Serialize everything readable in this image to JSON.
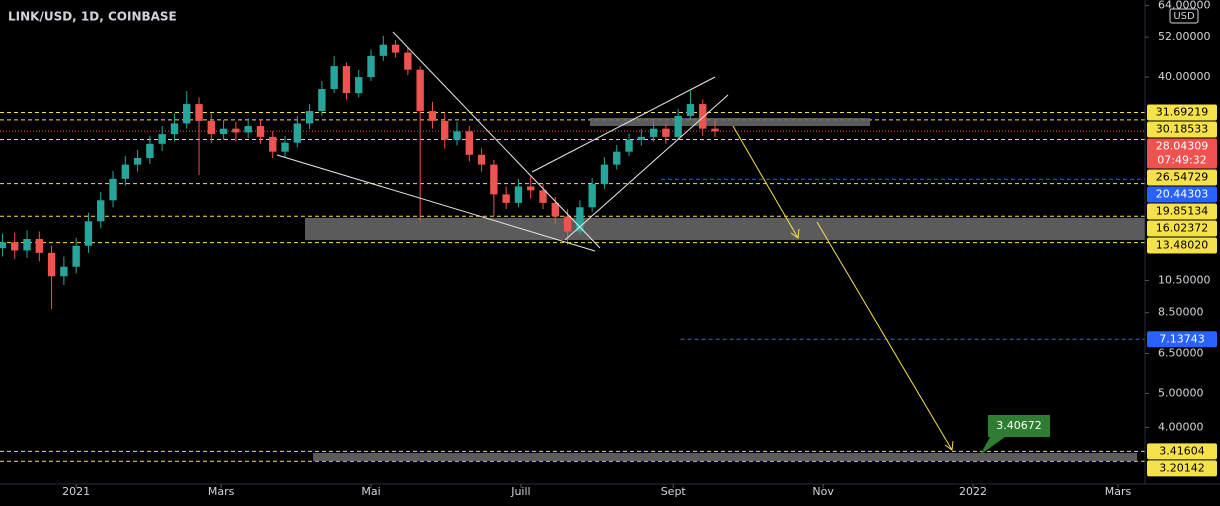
{
  "chart_data": {
    "type": "candlestick",
    "title": "LINK/USD, 1D, COINBASE",
    "currency": "USD",
    "x": [
      -30,
      -25,
      -20,
      -15,
      -10,
      -5,
      0,
      5,
      10,
      15,
      20,
      25,
      30,
      35,
      40,
      45,
      50,
      55,
      60,
      65,
      70,
      75,
      80,
      85,
      90,
      95,
      100,
      105,
      110,
      115,
      120,
      125,
      130,
      135,
      140,
      145,
      150,
      155,
      160,
      165,
      170,
      175,
      180,
      185,
      190,
      195,
      200,
      205,
      210,
      215,
      220,
      225,
      230,
      235,
      240,
      245,
      250,
      255,
      260
    ],
    "open": [
      13.0,
      13.5,
      12.8,
      13.8,
      12.6,
      10.8,
      11.5,
      13.2,
      15.5,
      17.8,
      20.5,
      22.5,
      23.5,
      25.8,
      27.5,
      29.5,
      33.5,
      30.0,
      27.5,
      28.5,
      27.8,
      29.0,
      27.0,
      24.5,
      26.0,
      29.5,
      32.0,
      37.0,
      43.0,
      36.0,
      40.0,
      46.0,
      49.5,
      47.0,
      42.0,
      32.0,
      30.0,
      26.5,
      28.0,
      24.0,
      22.5,
      18.5,
      17.5,
      19.5,
      19.0,
      17.5,
      16.0,
      14.5,
      17.0,
      19.8,
      22.5,
      24.5,
      26.5,
      27.0,
      28.5,
      27.0,
      31.0,
      33.5,
      28.5
    ],
    "high": [
      14.3,
      14.4,
      14.6,
      14.5,
      13.2,
      12.3,
      13.9,
      16.4,
      18.8,
      21.6,
      23.8,
      24.8,
      27.2,
      29.0,
      31.5,
      36.5,
      35.0,
      31.5,
      30.2,
      29.8,
      30.5,
      30.3,
      28.0,
      27.2,
      31.0,
      33.5,
      39.0,
      46.0,
      44.0,
      42.0,
      48.0,
      52.5,
      51.0,
      48.5,
      43.0,
      34.0,
      31.5,
      29.8,
      29.0,
      25.0,
      23.2,
      19.5,
      20.5,
      20.8,
      19.8,
      18.2,
      16.8,
      17.8,
      20.6,
      23.6,
      25.6,
      27.6,
      28.4,
      29.8,
      29.5,
      32.5,
      36.5,
      34.5,
      30.0
    ],
    "low": [
      12.3,
      12.1,
      12.2,
      11.9,
      8.7,
      10.2,
      11.0,
      12.6,
      14.8,
      17.0,
      19.6,
      21.5,
      22.6,
      24.6,
      26.2,
      28.5,
      21.0,
      26.0,
      26.5,
      26.2,
      26.8,
      25.8,
      23.5,
      23.6,
      25.2,
      28.4,
      31.0,
      36.0,
      34.5,
      35.0,
      39.0,
      44.5,
      45.5,
      40.5,
      15.5,
      28.5,
      25.0,
      25.5,
      23.0,
      21.5,
      16.0,
      16.8,
      17.0,
      18.0,
      16.8,
      15.2,
      13.3,
      14.2,
      16.5,
      19.2,
      21.8,
      23.8,
      25.5,
      26.2,
      25.8,
      26.5,
      30.2,
      27.2,
      27.0
    ],
    "close": [
      13.5,
      12.8,
      13.8,
      12.6,
      10.8,
      11.5,
      13.2,
      15.5,
      17.8,
      20.5,
      22.5,
      23.5,
      25.8,
      27.5,
      29.5,
      33.5,
      30.0,
      27.5,
      28.5,
      27.8,
      29.0,
      27.0,
      24.5,
      26.0,
      29.5,
      32.0,
      37.0,
      43.0,
      36.0,
      40.0,
      46.0,
      49.5,
      47.0,
      42.0,
      32.0,
      30.0,
      26.5,
      28.0,
      24.0,
      22.5,
      18.5,
      17.5,
      19.5,
      19.0,
      17.5,
      16.0,
      14.5,
      17.0,
      19.8,
      22.5,
      24.5,
      26.5,
      27.0,
      28.5,
      27.0,
      31.0,
      33.5,
      28.5,
      28.0
    ],
    "up_color": "#26a69a",
    "down_color": "#ef5350",
    "xlim": [
      -31,
      435
    ],
    "xticks": [
      {
        "value": 0,
        "label": "2021"
      },
      {
        "value": 59,
        "label": "Mars"
      },
      {
        "value": 120,
        "label": "Mai"
      },
      {
        "value": 181,
        "label": "Juill"
      },
      {
        "value": 243,
        "label": "Sept"
      },
      {
        "value": 304,
        "label": "Nov"
      },
      {
        "value": 365,
        "label": "2022"
      },
      {
        "value": 424,
        "label": "Mars"
      }
    ],
    "ylim": [
      2.757,
      66.4
    ],
    "log_scale": true,
    "yticks": [
      {
        "value": 64,
        "label": "64.00000"
      },
      {
        "value": 52,
        "label": "52.00000"
      },
      {
        "value": 40,
        "label": "40.00000"
      },
      {
        "value": 10.5,
        "label": "10.50000"
      },
      {
        "value": 8.5,
        "label": "8.50000"
      },
      {
        "value": 6.5,
        "label": "6.50000"
      },
      {
        "value": 5,
        "label": "5.00000"
      },
      {
        "value": 4,
        "label": "4.00000"
      }
    ],
    "price_lines": [
      {
        "value": 31.69219,
        "color": "#f5e14a",
        "style": "dashed"
      },
      {
        "value": 30.18533,
        "color": "#f5e14a",
        "style": "dashed"
      },
      {
        "value": 28.04309,
        "color": "#ef5350",
        "style": "dotted",
        "countdown": "07:49:32"
      },
      {
        "value": 26.54729,
        "color": "#f5e14a",
        "style": "dashed"
      },
      {
        "value": 20.44303,
        "color": "#2962ff",
        "style": "dashed",
        "from": 238
      },
      {
        "value": 19.85134,
        "color": "#f5e14a",
        "style": "dashed"
      },
      {
        "value": 16.02372,
        "color": "#f5e14a",
        "style": "dashed"
      },
      {
        "value": 13.4802,
        "label": "13.48020",
        "color": "#f5e14a",
        "style": "dashed"
      },
      {
        "value": 7.13743,
        "color": "#2962ff",
        "style": "dashed",
        "from": 246
      },
      {
        "value": 3.41604,
        "color": "#f5e14a",
        "style": "dashed"
      },
      {
        "value": 3.20142,
        "color": "#f5e14a",
        "style": "dashed"
      }
    ],
    "annotation": 3.40672
  }
}
